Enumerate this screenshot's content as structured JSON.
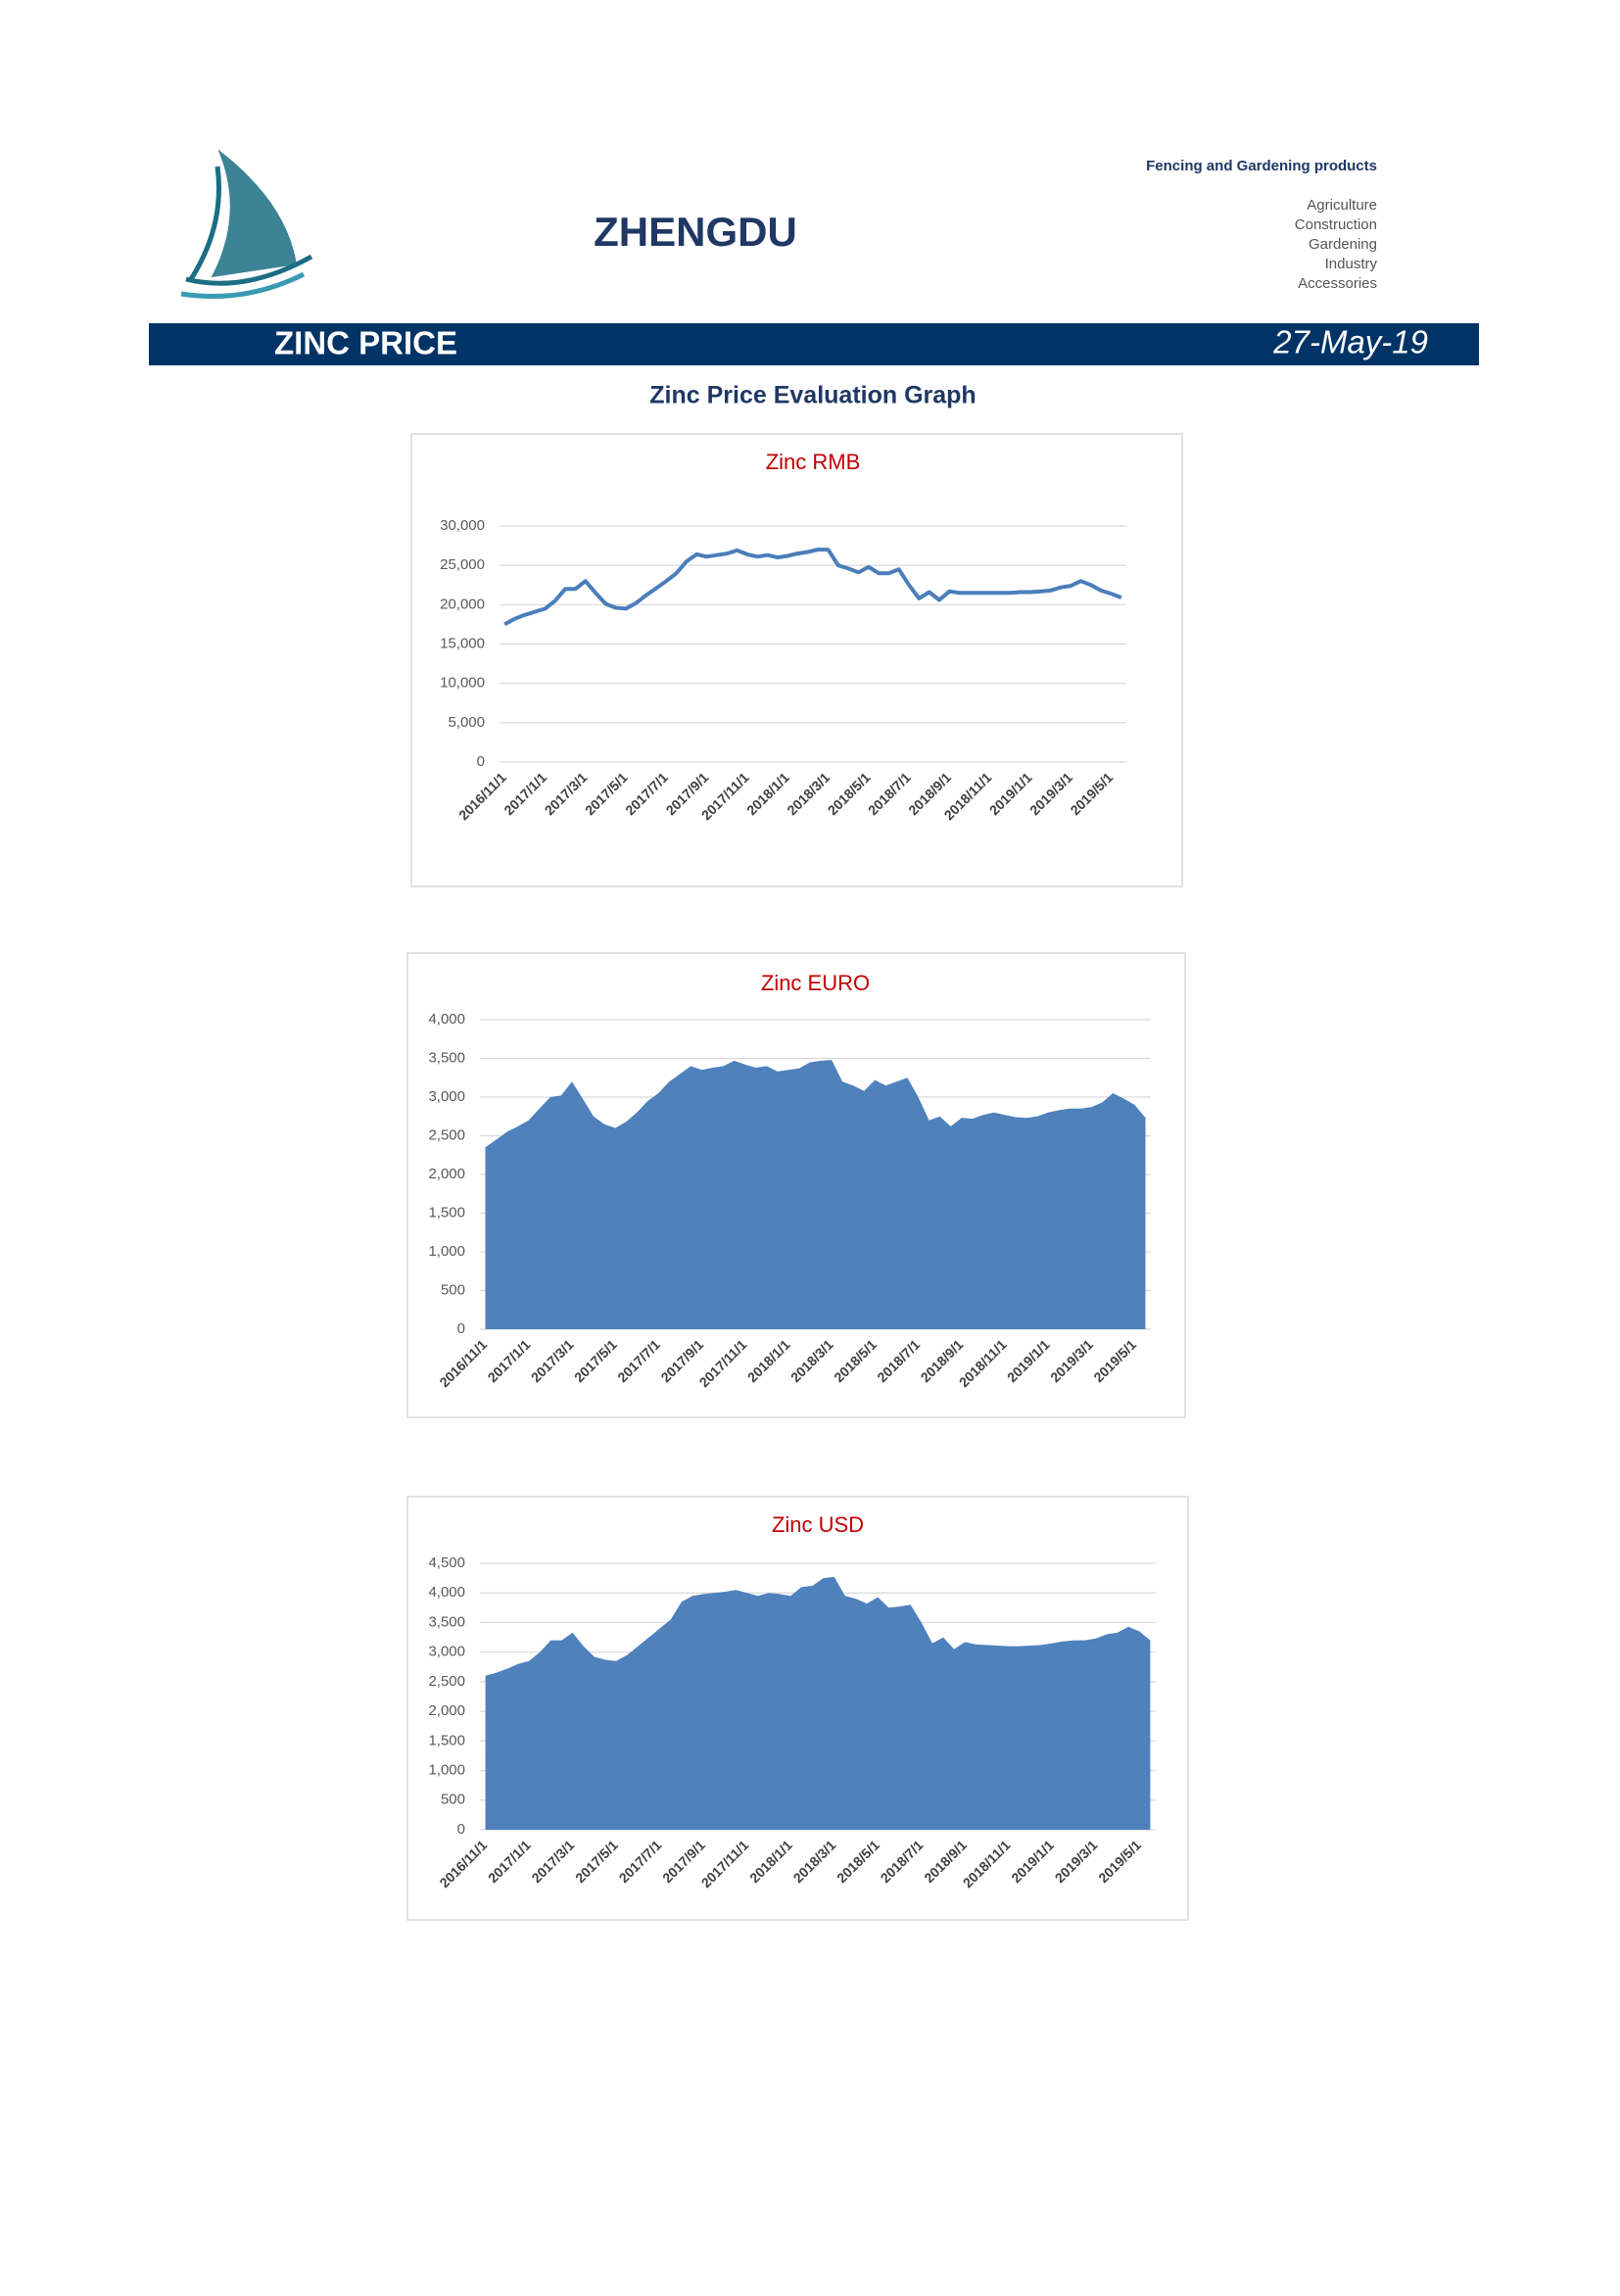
{
  "header": {
    "brand": "ZHENGDU",
    "tagline": "Fencing and Gardening products",
    "sectors": [
      "Agriculture",
      "Construction",
      "Gardening",
      "Industry",
      "Accessories"
    ],
    "banner_title": "ZINC PRICE",
    "banner_date": "27-May-19",
    "section_title": "Zinc Price Evaluation Graph"
  },
  "chart_data": [
    {
      "type": "line",
      "title": "Zinc RMB",
      "color": "#4a7ebb",
      "categories": [
        "2016/11/1",
        null,
        null,
        null,
        "2017/1/1",
        null,
        null,
        null,
        "2017/3/1",
        null,
        null,
        null,
        "2017/5/1",
        null,
        null,
        null,
        "2017/7/1",
        null,
        null,
        null,
        "2017/9/1",
        null,
        null,
        null,
        "2017/11/1",
        null,
        null,
        null,
        "2018/1/1",
        null,
        null,
        null,
        "2018/3/1",
        null,
        null,
        null,
        "2018/5/1",
        null,
        null,
        null,
        "2018/7/1",
        null,
        null,
        null,
        "2018/9/1",
        null,
        null,
        null,
        "2018/11/1",
        null,
        null,
        null,
        "2019/1/1",
        null,
        null,
        null,
        "2019/3/1",
        null,
        null,
        null,
        "2019/5/1",
        null
      ],
      "values": [
        17500,
        18200,
        18700,
        19100,
        19500,
        20500,
        22000,
        22000,
        23000,
        21500,
        20100,
        19600,
        19500,
        20200,
        21200,
        22100,
        23000,
        24000,
        25500,
        26400,
        26100,
        26300,
        26500,
        26900,
        26400,
        26100,
        26300,
        26000,
        26200,
        26500,
        26700,
        27000,
        27000,
        25000,
        24600,
        24100,
        24800,
        24000,
        24000,
        24500,
        22500,
        20800,
        21600,
        20600,
        21700,
        21500,
        21500,
        21500,
        21500,
        21500,
        21500,
        21600,
        21600,
        21700,
        21800,
        22200,
        22400,
        23000,
        22500,
        21800,
        21400,
        20900
      ],
      "ylim": [
        0,
        30000
      ],
      "yticks": [
        0,
        {
          "value": 5000,
          "label": "5,000"
        },
        {
          "value": 10000,
          "label": "10,000"
        },
        {
          "value": 15000,
          "label": "15,000"
        },
        {
          "value": 20000,
          "label": "20,000"
        },
        {
          "value": 25000,
          "label": "25,000"
        },
        {
          "value": 30000,
          "label": "30,000"
        }
      ],
      "grid": true
    },
    {
      "type": "area",
      "title": "Zinc EURO",
      "color": "#4f81bd",
      "categories": [
        "2016/11/1",
        null,
        null,
        null,
        "2017/1/1",
        null,
        null,
        null,
        "2017/3/1",
        null,
        null,
        null,
        "2017/5/1",
        null,
        null,
        null,
        "2017/7/1",
        null,
        null,
        null,
        "2017/9/1",
        null,
        null,
        null,
        "2017/11/1",
        null,
        null,
        null,
        "2018/1/1",
        null,
        null,
        null,
        "2018/3/1",
        null,
        null,
        null,
        "2018/5/1",
        null,
        null,
        null,
        "2018/7/1",
        null,
        null,
        null,
        "2018/9/1",
        null,
        null,
        null,
        "2018/11/1",
        null,
        null,
        null,
        "2019/1/1",
        null,
        null,
        null,
        "2019/3/1",
        null,
        null,
        null,
        "2019/5/1",
        null
      ],
      "values": [
        2350,
        2450,
        2550,
        2620,
        2700,
        2850,
        3000,
        3020,
        3200,
        2980,
        2750,
        2650,
        2600,
        2680,
        2800,
        2950,
        3050,
        3200,
        3300,
        3400,
        3350,
        3380,
        3400,
        3470,
        3420,
        3380,
        3400,
        3330,
        3350,
        3370,
        3450,
        3470,
        3480,
        3200,
        3150,
        3080,
        3220,
        3150,
        3200,
        3250,
        3000,
        2700,
        2750,
        2620,
        2730,
        2720,
        2770,
        2800,
        2770,
        2740,
        2730,
        2750,
        2800,
        2830,
        2850,
        2850,
        2870,
        2930,
        3050,
        2980,
        2900,
        2730
      ],
      "ylim": [
        0,
        4000
      ],
      "yticks": [
        0,
        500,
        {
          "value": 1000,
          "label": "1,000"
        },
        {
          "value": 1500,
          "label": "1,500"
        },
        {
          "value": 2000,
          "label": "2,000"
        },
        {
          "value": 2500,
          "label": "2,500"
        },
        {
          "value": 3000,
          "label": "3,000"
        },
        {
          "value": 3500,
          "label": "3,500"
        },
        {
          "value": 4000,
          "label": "4,000"
        }
      ],
      "grid": true
    },
    {
      "type": "area",
      "title": "Zinc USD",
      "color": "#4f81bd",
      "categories": [
        "2016/11/1",
        null,
        null,
        null,
        "2017/1/1",
        null,
        null,
        null,
        "2017/3/1",
        null,
        null,
        null,
        "2017/5/1",
        null,
        null,
        null,
        "2017/7/1",
        null,
        null,
        null,
        "2017/9/1",
        null,
        null,
        null,
        "2017/11/1",
        null,
        null,
        null,
        "2018/1/1",
        null,
        null,
        null,
        "2018/3/1",
        null,
        null,
        null,
        "2018/5/1",
        null,
        null,
        null,
        "2018/7/1",
        null,
        null,
        null,
        "2018/9/1",
        null,
        null,
        null,
        "2018/11/1",
        null,
        null,
        null,
        "2019/1/1",
        null,
        null,
        null,
        "2019/3/1",
        null,
        null,
        null,
        "2019/5/1",
        null
      ],
      "values": [
        2600,
        2650,
        2720,
        2800,
        2850,
        3000,
        3200,
        3200,
        3330,
        3100,
        2920,
        2870,
        2850,
        2950,
        3100,
        3250,
        3400,
        3550,
        3850,
        3950,
        3980,
        4000,
        4020,
        4050,
        4000,
        3950,
        4000,
        3980,
        3950,
        4100,
        4120,
        4250,
        4270,
        3950,
        3900,
        3820,
        3930,
        3750,
        3770,
        3800,
        3500,
        3150,
        3250,
        3050,
        3170,
        3130,
        3120,
        3110,
        3100,
        3100,
        3110,
        3120,
        3150,
        3180,
        3200,
        3200,
        3230,
        3300,
        3330,
        3430,
        3350,
        3200
      ],
      "ylim": [
        0,
        4500
      ],
      "yticks": [
        0,
        500,
        {
          "value": 1000,
          "label": "1,000"
        },
        {
          "value": 1500,
          "label": "1,500"
        },
        {
          "value": 2000,
          "label": "2,000"
        },
        {
          "value": 2500,
          "label": "2,500"
        },
        {
          "value": 3000,
          "label": "3,000"
        },
        {
          "value": 3500,
          "label": "3,500"
        },
        {
          "value": 4000,
          "label": "4,000"
        },
        {
          "value": 4500,
          "label": "4,500"
        }
      ],
      "grid": true
    }
  ]
}
